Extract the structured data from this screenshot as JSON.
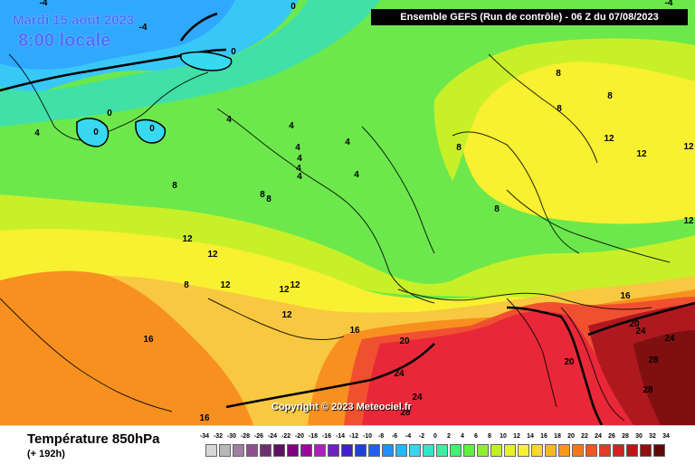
{
  "header": {
    "date": "Mardi 15 août 2023",
    "local_time": "8:00 locale",
    "run_info": "Ensemble GEFS  (Run de contrôle)  -  06 Z du 07/08/2023"
  },
  "footer": {
    "parameter": "Température 850hPa",
    "lead_time": "(+ 192h)"
  },
  "copyright": "Copyright © 2023 Meteociel.fr",
  "colors": {
    "blue_cold": "#2fa8ff",
    "cyan": "#38d8f0",
    "teal": "#40e0a8",
    "green": "#6ce84c",
    "lime": "#c8f028",
    "yellow": "#f8f030",
    "light_orange": "#f8c840",
    "orange": "#f89020",
    "red_orange": "#f05030",
    "red": "#e82838",
    "dark_red": "#b01820",
    "very_dark_red": "#801010",
    "title_blue": "#4a6fff"
  },
  "map": {
    "contour_labels": [
      {
        "text": "-4"
      },
      {
        "text": "-4"
      },
      {
        "text": "-4"
      },
      {
        "text": "0"
      },
      {
        "text": "0"
      },
      {
        "text": "0"
      },
      {
        "text": "0"
      },
      {
        "text": "0"
      },
      {
        "text": "4"
      },
      {
        "text": "4"
      },
      {
        "text": "4"
      },
      {
        "text": "4"
      },
      {
        "text": "4"
      },
      {
        "text": "4"
      },
      {
        "text": "4"
      },
      {
        "text": "4"
      },
      {
        "text": "4"
      },
      {
        "text": "8"
      },
      {
        "text": "8"
      },
      {
        "text": "8"
      },
      {
        "text": "8"
      },
      {
        "text": "8"
      },
      {
        "text": "8"
      },
      {
        "text": "8"
      },
      {
        "text": "8"
      },
      {
        "text": "12"
      },
      {
        "text": "12"
      },
      {
        "text": "12"
      },
      {
        "text": "12"
      },
      {
        "text": "12"
      },
      {
        "text": "12"
      },
      {
        "text": "12"
      },
      {
        "text": "12"
      },
      {
        "text": "12"
      },
      {
        "text": "12"
      },
      {
        "text": "16"
      },
      {
        "text": "16"
      },
      {
        "text": "16"
      },
      {
        "text": "16"
      },
      {
        "text": "20"
      },
      {
        "text": "20"
      },
      {
        "text": "20"
      },
      {
        "text": "24"
      },
      {
        "text": "24"
      },
      {
        "text": "24"
      },
      {
        "text": "24"
      },
      {
        "text": "28"
      },
      {
        "text": "28"
      },
      {
        "text": "28"
      },
      {
        "text": "8"
      }
    ]
  },
  "legend": {
    "unit_values": [
      "-34",
      "-32",
      "-30",
      "-28",
      "-26",
      "-24",
      "-22",
      "-20",
      "-18",
      "-16",
      "-14",
      "-12",
      "-10",
      "-8",
      "-6",
      "-4",
      "-2",
      "0",
      "2",
      "4",
      "6",
      "8",
      "10",
      "12",
      "14",
      "16",
      "18",
      "20",
      "22",
      "24",
      "26",
      "28",
      "30",
      "32",
      "34"
    ],
    "swatch_colors": [
      "#d8d8d8",
      "#b8b8b8",
      "#a080a0",
      "#905090",
      "#703070",
      "#601060",
      "#800080",
      "#a000a0",
      "#b020c0",
      "#7020c0",
      "#4020d0",
      "#2040e0",
      "#2060f0",
      "#2090ff",
      "#20b8ff",
      "#30d8f0",
      "#30e8c8",
      "#38f0a0",
      "#40f070",
      "#60f040",
      "#90f030",
      "#c0f028",
      "#e8f028",
      "#f8f030",
      "#f8d828",
      "#f8b820",
      "#f89818",
      "#f87818",
      "#f05820",
      "#e83828",
      "#d82020",
      "#b81818",
      "#901010",
      "#600808"
    ]
  }
}
